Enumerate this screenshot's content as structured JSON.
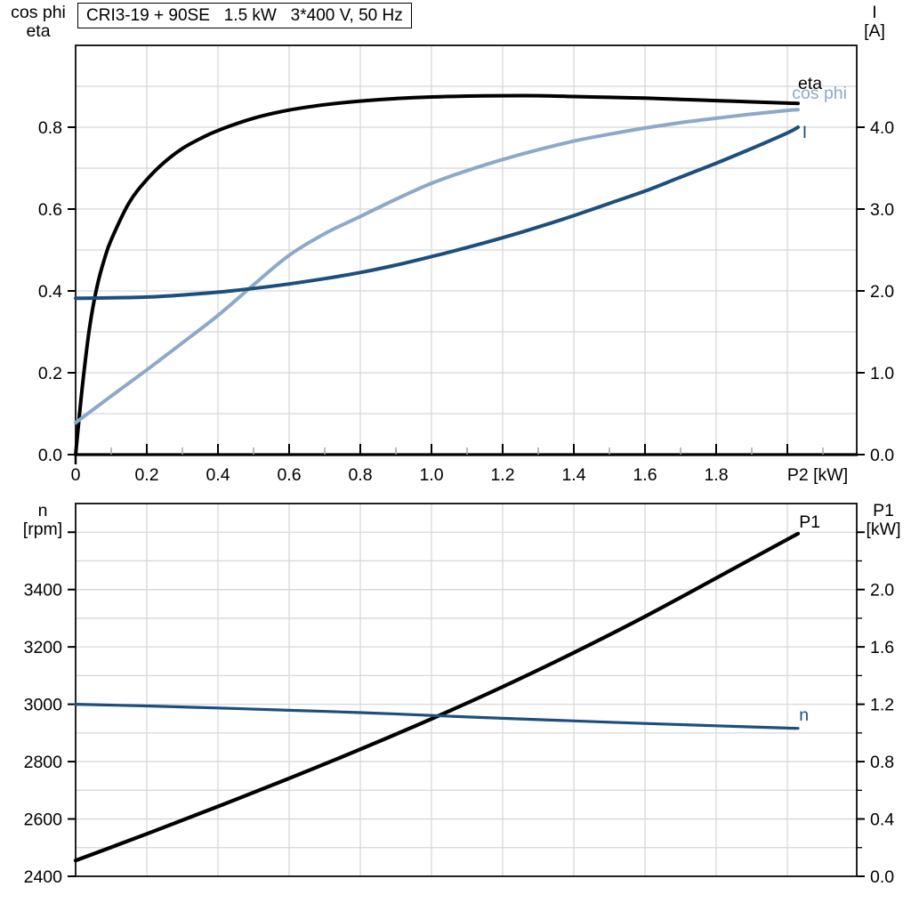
{
  "title": "CRI3-19 + 90SE   1.5 kW   3*400 V, 50 Hz",
  "colors": {
    "black": "#000000",
    "dark_blue": "#1C4F7D",
    "light_blue": "#8CA9C9",
    "grid": "#D8D8D8",
    "minor_tick": "#A6A6A6",
    "frame": "#222222"
  },
  "chart_data": [
    {
      "type": "line",
      "name": "motor-curves-top",
      "x_axis": {
        "label": "P2 [kW]",
        "min": 0,
        "max": 2.195,
        "grid": [
          0.2,
          0.4,
          0.6,
          0.8,
          1.0,
          1.2,
          1.4,
          1.6,
          1.8,
          2.0
        ],
        "ticks": [
          0,
          0.2,
          0.4,
          0.6,
          0.8,
          1.0,
          1.2,
          1.4,
          1.6,
          1.8,
          2.0
        ],
        "tick_labels": [
          "0",
          "0.2",
          "0.4",
          "0.6",
          "0.8",
          "1.0",
          "1.2",
          "1.4",
          "1.6",
          "1.8",
          ""
        ],
        "minor_ticks": [
          0.1,
          0.3,
          0.5,
          0.7,
          0.9,
          1.1,
          1.3,
          1.5,
          1.7,
          1.9,
          2.1
        ],
        "unit_label": {
          "text": "P2 [kW]",
          "x": 2.085
        },
        "show_labels": true
      },
      "left_axis": {
        "title_lines": [
          "cos phi",
          "eta"
        ],
        "min": 0,
        "max": 1.0,
        "grid": [
          0.1,
          0.2,
          0.3,
          0.4,
          0.5,
          0.6,
          0.7,
          0.8,
          0.9
        ],
        "ticks": [
          0,
          0.2,
          0.4,
          0.6,
          0.8
        ],
        "tick_labels": [
          "0.0",
          "0.2",
          "0.4",
          "0.6",
          "0.8"
        ]
      },
      "right_axis": {
        "title_lines": [
          "I",
          "[A]"
        ],
        "min": 0,
        "max": 5.0,
        "ticks": [
          0,
          1,
          2,
          3,
          4
        ],
        "tick_labels": [
          "0.0",
          "1.0",
          "2.0",
          "3.0",
          "4.0"
        ],
        "minor_ticks": []
      },
      "series": [
        {
          "id": "eta",
          "name": "eta",
          "axis": "left",
          "color": "#000000",
          "width": 4,
          "label": {
            "x": 2.03,
            "v": 0.894
          },
          "points": [
            [
              0,
              0
            ],
            [
              0.02,
              0.175
            ],
            [
              0.04,
              0.315
            ],
            [
              0.06,
              0.41
            ],
            [
              0.08,
              0.475
            ],
            [
              0.1,
              0.525
            ],
            [
              0.15,
              0.615
            ],
            [
              0.2,
              0.672
            ],
            [
              0.25,
              0.715
            ],
            [
              0.3,
              0.748
            ],
            [
              0.35,
              0.772
            ],
            [
              0.4,
              0.792
            ],
            [
              0.5,
              0.822
            ],
            [
              0.6,
              0.842
            ],
            [
              0.7,
              0.855
            ],
            [
              0.8,
              0.864
            ],
            [
              0.9,
              0.87
            ],
            [
              1.0,
              0.874
            ],
            [
              1.1,
              0.876
            ],
            [
              1.2,
              0.877
            ],
            [
              1.3,
              0.877
            ],
            [
              1.4,
              0.875
            ],
            [
              1.5,
              0.873
            ],
            [
              1.6,
              0.871
            ],
            [
              1.7,
              0.868
            ],
            [
              1.8,
              0.865
            ],
            [
              1.9,
              0.862
            ],
            [
              2.0,
              0.859
            ],
            [
              2.03,
              0.858
            ]
          ]
        },
        {
          "id": "cos-phi",
          "name": "cos phi",
          "axis": "left",
          "color": "#8CA9C9",
          "width": 4,
          "label": {
            "x": 2.013,
            "v": 0.8695
          },
          "points": [
            [
              0,
              0.078
            ],
            [
              0.1,
              0.143
            ],
            [
              0.2,
              0.207
            ],
            [
              0.3,
              0.273
            ],
            [
              0.4,
              0.34
            ],
            [
              0.5,
              0.415
            ],
            [
              0.6,
              0.487
            ],
            [
              0.7,
              0.54
            ],
            [
              0.8,
              0.582
            ],
            [
              0.9,
              0.624
            ],
            [
              1.0,
              0.663
            ],
            [
              1.1,
              0.694
            ],
            [
              1.2,
              0.721
            ],
            [
              1.3,
              0.745
            ],
            [
              1.4,
              0.766
            ],
            [
              1.5,
              0.783
            ],
            [
              1.6,
              0.798
            ],
            [
              1.7,
              0.811
            ],
            [
              1.8,
              0.822
            ],
            [
              1.9,
              0.832
            ],
            [
              2.0,
              0.841
            ],
            [
              2.03,
              0.843
            ]
          ]
        },
        {
          "id": "current",
          "name": "I",
          "axis": "right",
          "color": "#1C4F7D",
          "width": 4,
          "label": {
            "x": 2.042,
            "v": 3.87
          },
          "points": [
            [
              0,
              1.91
            ],
            [
              0.1,
              1.915
            ],
            [
              0.2,
              1.925
            ],
            [
              0.3,
              1.95
            ],
            [
              0.4,
              1.985
            ],
            [
              0.5,
              2.03
            ],
            [
              0.6,
              2.085
            ],
            [
              0.7,
              2.15
            ],
            [
              0.8,
              2.225
            ],
            [
              0.9,
              2.315
            ],
            [
              1.0,
              2.42
            ],
            [
              1.1,
              2.53
            ],
            [
              1.2,
              2.65
            ],
            [
              1.3,
              2.78
            ],
            [
              1.4,
              2.92
            ],
            [
              1.5,
              3.07
            ],
            [
              1.6,
              3.22
            ],
            [
              1.7,
              3.39
            ],
            [
              1.8,
              3.56
            ],
            [
              1.9,
              3.74
            ],
            [
              2.0,
              3.93
            ],
            [
              2.03,
              4.0
            ]
          ]
        }
      ]
    },
    {
      "type": "line",
      "name": "motor-curves-bottom",
      "x_axis": {
        "label": "",
        "min": 0,
        "max": 2.195,
        "grid": [
          0.2,
          0.4,
          0.6,
          0.8,
          1.0,
          1.2,
          1.4,
          1.6,
          1.8,
          2.0
        ],
        "ticks": [],
        "tick_labels": [],
        "minor_ticks": [],
        "show_labels": false
      },
      "left_axis": {
        "title_lines": [
          "n",
          "[rpm]"
        ],
        "min": 2400,
        "max": 3700,
        "grid": [
          2500,
          2600,
          2700,
          2800,
          2900,
          3000,
          3100,
          3200,
          3300,
          3400,
          3500,
          3600
        ],
        "ticks": [
          2400,
          2600,
          2800,
          3000,
          3200,
          3400,
          3600
        ],
        "tick_labels": [
          "2400",
          "2600",
          "2800",
          "3000",
          "3200",
          "3400",
          ""
        ]
      },
      "right_axis": {
        "title_lines": [
          "P1",
          "[kW]"
        ],
        "min": 0,
        "max": 2.6,
        "ticks": [
          0,
          0.4,
          0.8,
          1.2,
          1.6,
          2.0,
          2.4
        ],
        "tick_labels": [
          "0.0",
          "0.4",
          "0.8",
          "1.2",
          "1.6",
          "2.0",
          ""
        ],
        "minor_ticks": [
          0.2,
          0.6,
          1.0,
          1.4,
          1.8,
          2.2
        ]
      },
      "series": [
        {
          "id": "p1",
          "name": "P1",
          "axis": "right",
          "color": "#000000",
          "width": 4.2,
          "label": {
            "x": 2.033,
            "v": 2.432
          },
          "points": [
            [
              0,
              0.11
            ],
            [
              0.2,
              0.296
            ],
            [
              0.4,
              0.487
            ],
            [
              0.6,
              0.683
            ],
            [
              0.8,
              0.886
            ],
            [
              1.0,
              1.098
            ],
            [
              1.2,
              1.322
            ],
            [
              1.4,
              1.56
            ],
            [
              1.6,
              1.812
            ],
            [
              1.8,
              2.08
            ],
            [
              2.0,
              2.35
            ],
            [
              2.03,
              2.39
            ]
          ]
        },
        {
          "id": "n",
          "name": "n",
          "axis": "left",
          "color": "#1C4F7D",
          "width": 3.2,
          "label": {
            "x": 2.033,
            "v": 2943
          },
          "points": [
            [
              0,
              3000
            ],
            [
              0.2,
              2994
            ],
            [
              0.4,
              2987
            ],
            [
              0.6,
              2979
            ],
            [
              0.8,
              2971
            ],
            [
              1.0,
              2961
            ],
            [
              1.2,
              2951
            ],
            [
              1.4,
              2942
            ],
            [
              1.6,
              2933
            ],
            [
              1.8,
              2925
            ],
            [
              2.0,
              2917
            ],
            [
              2.03,
              2916
            ]
          ]
        }
      ]
    }
  ]
}
